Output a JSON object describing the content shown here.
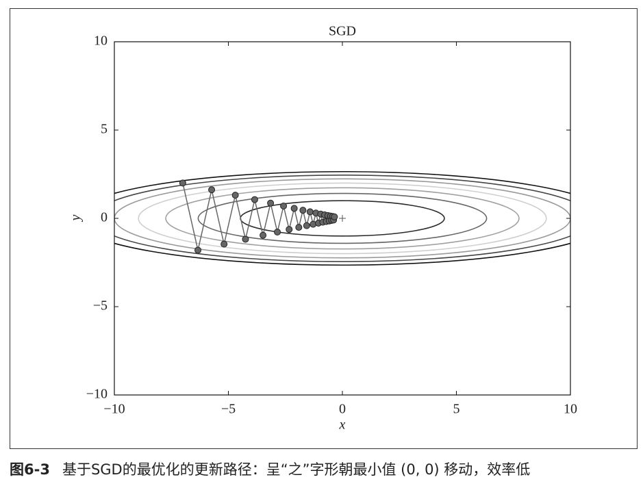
{
  "chart_data": {
    "type": "scatter",
    "title": "SGD",
    "x_label": "x",
    "y_label": "y",
    "xlim": [
      -10,
      10
    ],
    "ylim": [
      -10,
      10
    ],
    "xticks": [
      {
        "value": -10,
        "label": "−10"
      },
      {
        "value": -5,
        "label": "−5"
      },
      0,
      5,
      10
    ],
    "yticks": [
      {
        "value": -10,
        "label": "−10"
      },
      {
        "value": -5,
        "label": "−5"
      },
      0,
      5,
      10
    ],
    "contour_levels": [
      1,
      2,
      3,
      4,
      5,
      6,
      7
    ],
    "contour_colors": [
      "#2a2a2a",
      "#666666",
      "#a0a0a0",
      "#cfcfcf",
      "#9a9a9a",
      "#444444",
      "#111111"
    ],
    "minimum": {
      "x": 0,
      "y": 0
    },
    "series": [
      {
        "name": "SGD",
        "color": "#666666",
        "x": [
          -7,
          -6.335,
          -5.733,
          -5.189,
          -4.696,
          -4.25,
          -3.846,
          -3.481,
          -3.15,
          -2.851,
          -2.58,
          -2.335,
          -2.113,
          -1.912,
          -1.731,
          -1.566,
          -1.417,
          -1.283,
          -1.161,
          -1.051,
          -0.951,
          -0.86,
          -0.779,
          -0.705,
          -0.638,
          -0.577,
          -0.522,
          -0.473,
          -0.428,
          -0.387,
          -0.35
        ],
        "values": [
          2,
          -1.8,
          1.62,
          -1.458,
          1.312,
          -1.181,
          1.063,
          -0.957,
          0.861,
          -0.775,
          0.697,
          -0.628,
          0.565,
          -0.508,
          0.458,
          -0.412,
          0.371,
          -0.334,
          0.3,
          -0.27,
          0.243,
          -0.219,
          0.197,
          -0.177,
          0.16,
          -0.144,
          0.129,
          -0.116,
          0.105,
          -0.094,
          0.085
        ]
      }
    ]
  },
  "caption": {
    "label": "图6-3",
    "text": "基于SGD的最优化的更新路径：呈“之”字形朝最小值 (0, 0) 移动，效率低"
  }
}
